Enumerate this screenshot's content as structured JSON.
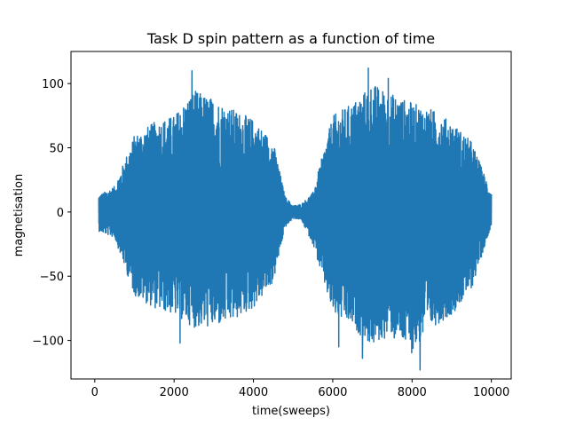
{
  "chart_data": {
    "type": "line",
    "title": "Task D spin pattern as a function of time",
    "xlabel": "time(sweeps)",
    "ylabel": "magnetisation",
    "xlim": [
      -600,
      10500
    ],
    "ylim": [
      -130,
      125
    ],
    "x_ticks": [
      {
        "value": 0,
        "label": "0"
      },
      {
        "value": 2000,
        "label": "2000"
      },
      {
        "value": 4000,
        "label": "4000"
      },
      {
        "value": 6000,
        "label": "6000"
      },
      {
        "value": 8000,
        "label": "8000"
      },
      {
        "value": 10000,
        "label": "10000"
      }
    ],
    "y_ticks": [
      {
        "value": -100,
        "label": "−100"
      },
      {
        "value": -50,
        "label": "−50"
      },
      {
        "value": 0,
        "label": "0"
      },
      {
        "value": 50,
        "label": "50"
      },
      {
        "value": 100,
        "label": "100"
      }
    ],
    "grid": false,
    "legend": "none",
    "series": [
      {
        "color": "#1f77b4",
        "x_range": [
          100,
          10000
        ],
        "envelope": {
          "x": [
            100,
            500,
            1000,
            1500,
            2000,
            2500,
            3000,
            3500,
            4000,
            4500,
            4800,
            5000,
            5200,
            5500,
            6000,
            6500,
            7000,
            7500,
            8000,
            8500,
            9000,
            9500,
            10000
          ],
          "max": [
            13,
            20,
            60,
            70,
            75,
            95,
            88,
            80,
            72,
            55,
            12,
            5,
            6,
            15,
            75,
            85,
            100,
            92,
            85,
            80,
            70,
            55,
            15
          ],
          "min": [
            -15,
            -20,
            -65,
            -75,
            -80,
            -90,
            -90,
            -85,
            -75,
            -55,
            -12,
            -5,
            -6,
            -25,
            -80,
            -90,
            -105,
            -95,
            -110,
            -90,
            -80,
            -60,
            -10
          ]
        },
        "peaks": [
          {
            "x": 2450,
            "y": 110
          },
          {
            "x": 2150,
            "y": -102
          },
          {
            "x": 6900,
            "y": 112
          },
          {
            "x": 6750,
            "y": -114
          },
          {
            "x": 8200,
            "y": -123
          },
          {
            "x": 6150,
            "y": -105
          },
          {
            "x": 7400,
            "y": 104
          },
          {
            "x": 7550,
            "y": -98
          }
        ]
      }
    ]
  }
}
